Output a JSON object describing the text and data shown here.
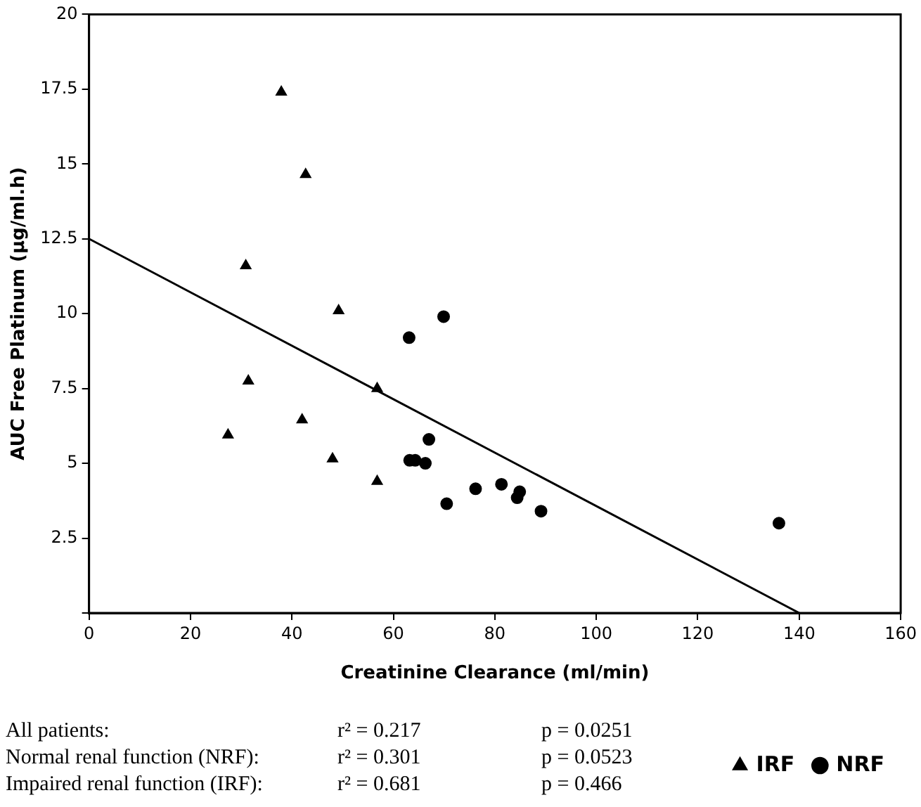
{
  "chart_data": {
    "type": "scatter",
    "xlabel": "Creatinine Clearance (ml/min)",
    "ylabel": "AUC Free Platinum (µg/ml.h)",
    "xlim": [
      0,
      160
    ],
    "xticks": [
      0,
      20,
      40,
      60,
      80,
      100,
      120,
      140,
      160
    ],
    "ylim": [
      0,
      20
    ],
    "yticks": [
      {
        "value": 0,
        "label": null
      },
      2.5,
      5,
      7.5,
      10,
      12.5,
      15,
      17.5,
      20
    ],
    "grid": false,
    "legend": "bottom right",
    "series": [
      {
        "name": "IRF",
        "color": "#000000",
        "marker": "triangle",
        "x": [
          37.9,
          42.7,
          30.9,
          49.2,
          31.4,
          56.8,
          42,
          27.4,
          48,
          56.8
        ],
        "values": [
          17.4,
          14.65,
          11.6,
          10.1,
          7.75,
          7.5,
          6.45,
          5.95,
          5.15,
          4.4
        ]
      },
      {
        "name": "NRF",
        "color": "#000000",
        "marker": "circle",
        "x": [
          69.9,
          63.1,
          67,
          63.2,
          64.3,
          66.3,
          70.5,
          76.2,
          81.3,
          84.9,
          84.4,
          89.1,
          136
        ],
        "values": [
          9.9,
          9.2,
          5.8,
          5.1,
          5.1,
          5.0,
          3.65,
          4.15,
          4.3,
          4.05,
          3.85,
          3.4,
          3.0
        ]
      },
      {
        "type": "line",
        "color": "#000000",
        "marker": "none",
        "x": [
          0,
          140
        ],
        "values": [
          12.5,
          0
        ]
      }
    ],
    "annotations": [
      "All patients:",
      "r² = 0.217",
      "p = 0.0251",
      "Normal renal function (NRF):",
      "r² = 0.301",
      "p = 0.0523",
      "Impaired renal function (IRF):",
      "r² = 0.681",
      "p = 0.466"
    ]
  }
}
